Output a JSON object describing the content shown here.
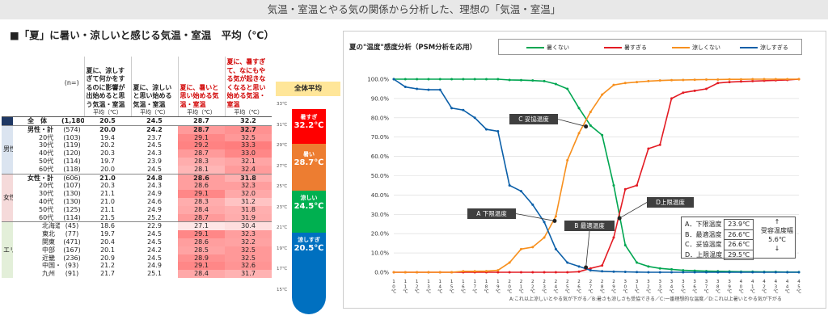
{
  "banner": "気温・室温とやる気の関係から分析した、理想の「気温・室温」",
  "section_title": "■「夏」に暑い・涼しいと感じる気温・室温　平均（℃）",
  "table": {
    "n_header": "(n=)",
    "columns": [
      "夏に、涼しすぎて何かをするのに影響が出始めると思う気温・室温",
      "夏に、涼しいと思い始める気温・室温",
      "夏に、暑いと思い始める気温・室温",
      "夏に、暑すぎて、なにもやる気が起きなくなると思い始める気温・室温"
    ],
    "avg_label": "平均（℃）",
    "all_row": {
      "label": "全　体",
      "n": "(1,180)",
      "values": [
        "20.5",
        "24.5",
        "28.7",
        "32.2"
      ]
    },
    "groups": [
      {
        "name": "男性",
        "rows": [
          {
            "label": "男性・計",
            "n": "(574)",
            "values": [
              "20.0",
              "24.2",
              "28.7",
              "32.7"
            ]
          },
          {
            "label": "20代",
            "n": "(103)",
            "values": [
              "19.4",
              "23.7",
              "29.1",
              "32.5"
            ]
          },
          {
            "label": "30代",
            "n": "(119)",
            "values": [
              "20.2",
              "24.5",
              "29.2",
              "33.3"
            ]
          },
          {
            "label": "40代",
            "n": "(120)",
            "values": [
              "20.3",
              "24.3",
              "28.7",
              "33.0"
            ]
          },
          {
            "label": "50代",
            "n": "(114)",
            "values": [
              "19.7",
              "23.9",
              "28.3",
              "32.1"
            ]
          },
          {
            "label": "60代",
            "n": "(118)",
            "values": [
              "20.0",
              "24.5",
              "28.1",
              "32.4"
            ]
          }
        ]
      },
      {
        "name": "女性",
        "rows": [
          {
            "label": "女性・計",
            "n": "(606)",
            "values": [
              "21.0",
              "24.8",
              "28.6",
              "31.8"
            ]
          },
          {
            "label": "20代",
            "n": "(107)",
            "values": [
              "20.3",
              "24.3",
              "28.6",
              "32.3"
            ]
          },
          {
            "label": "30代",
            "n": "(130)",
            "values": [
              "21.1",
              "24.9",
              "29.1",
              "32.0"
            ]
          },
          {
            "label": "40代",
            "n": "(130)",
            "values": [
              "21.0",
              "24.6",
              "28.3",
              "31.2"
            ]
          },
          {
            "label": "50代",
            "n": "(125)",
            "values": [
              "21.1",
              "24.9",
              "28.4",
              "31.8"
            ]
          },
          {
            "label": "60代",
            "n": "(114)",
            "values": [
              "21.5",
              "25.2",
              "28.7",
              "31.9"
            ]
          }
        ]
      },
      {
        "name": "エリア別",
        "rows": [
          {
            "label": "北海道",
            "n": "(45)",
            "values": [
              "18.6",
              "22.9",
              "27.1",
              "30.4"
            ]
          },
          {
            "label": "東北",
            "n": "(77)",
            "values": [
              "19.7",
              "24.5",
              "29.1",
              "32.3"
            ]
          },
          {
            "label": "関東",
            "n": "(471)",
            "values": [
              "20.4",
              "24.5",
              "28.6",
              "32.2"
            ]
          },
          {
            "label": "中部",
            "n": "(167)",
            "values": [
              "20.1",
              "24.2",
              "28.5",
              "32.5"
            ]
          },
          {
            "label": "近畿",
            "n": "(236)",
            "values": [
              "20.9",
              "24.5",
              "28.9",
              "32.5"
            ]
          },
          {
            "label": "中国・四国",
            "n": "(93)",
            "values": [
              "21.2",
              "24.9",
              "29.1",
              "32.6"
            ]
          },
          {
            "label": "九州",
            "n": "(91)",
            "values": [
              "21.7",
              "25.1",
              "28.4",
              "31.7"
            ]
          }
        ]
      }
    ]
  },
  "thermometer": {
    "header": "全体平均",
    "ticks": [
      "33℃",
      "31℃",
      "29℃",
      "27℃",
      "25℃",
      "23℃",
      "21℃",
      "19℃",
      "17℃",
      "15℃"
    ],
    "segments": [
      {
        "label": "暑すぎ",
        "value": "32.2℃",
        "color": "#ff0000"
      },
      {
        "label": "暑い",
        "value": "28.7℃",
        "color": "#ed7d31"
      },
      {
        "label": "涼しい",
        "value": "24.5℃",
        "color": "#00b050"
      },
      {
        "label": "涼しすぎ",
        "value": "20.5℃",
        "color": "#0070c0"
      }
    ]
  },
  "chart_title": "夏の\"温度\"感度分析（PSM分析を応用）",
  "chart_data": {
    "type": "line",
    "x": [
      10,
      11,
      12,
      13,
      14,
      15,
      16,
      17,
      18,
      19,
      20,
      21,
      22,
      23,
      24,
      25,
      26,
      27,
      28,
      29,
      30,
      31,
      32,
      33,
      34,
      35,
      36,
      37,
      38,
      39,
      40,
      41,
      42,
      43,
      44,
      45
    ],
    "x_tick_labels": [
      "10℃",
      "11℃",
      "12℃",
      "13℃",
      "14℃",
      "15℃",
      "16℃",
      "17℃",
      "18℃",
      "19℃",
      "20℃",
      "21℃",
      "22℃",
      "23℃",
      "24℃",
      "25℃",
      "26℃",
      "27℃",
      "28℃",
      "29℃",
      "30℃",
      "31℃",
      "32℃",
      "33℃",
      "34℃",
      "35℃",
      "36℃",
      "37℃",
      "38℃",
      "39℃",
      "40℃",
      "41℃",
      "42℃",
      "43℃",
      "44℃",
      "45℃"
    ],
    "y_tick_labels": [
      "0.0%",
      "10.0%",
      "20.0%",
      "30.0%",
      "40.0%",
      "50.0%",
      "60.0%",
      "70.0%",
      "80.0%",
      "90.0%",
      "100.0%"
    ],
    "ylim": [
      0,
      100
    ],
    "legend_position": "top",
    "series": [
      {
        "name": "暑くない",
        "color": "#00a651",
        "values": [
          100,
          100,
          100,
          100,
          100,
          100,
          100,
          100,
          100,
          100,
          99.6,
          99.5,
          99.3,
          99.0,
          97.5,
          95.0,
          85.0,
          76.0,
          71.0,
          45.0,
          14.0,
          5.0,
          3.0,
          2.0,
          1.5,
          1.0,
          0.8,
          0.6,
          0.5,
          0.4,
          0.3,
          0.3,
          0.2,
          0.2,
          0.1,
          0.1
        ]
      },
      {
        "name": "暑すぎる",
        "color": "#e31b23",
        "values": [
          0,
          0,
          0,
          0,
          0,
          0,
          0,
          0,
          0,
          0,
          0,
          0,
          0,
          0,
          0,
          0,
          0.3,
          2.0,
          3.5,
          18.0,
          43.0,
          45.0,
          64.0,
          66.0,
          90.0,
          93.0,
          94.0,
          95.0,
          98.0,
          98.5,
          98.8,
          99.0,
          99.2,
          99.4,
          99.6,
          100
        ]
      },
      {
        "name": "涼しくない",
        "color": "#f7901e",
        "values": [
          0,
          0,
          0,
          0,
          0,
          0,
          0.5,
          0.5,
          0.6,
          1.0,
          5.0,
          12.0,
          13.0,
          18.0,
          29.0,
          58.0,
          72.0,
          83.0,
          92.0,
          97.0,
          98.0,
          98.5,
          99.0,
          99.3,
          99.5,
          99.6,
          99.7,
          99.8,
          99.8,
          99.9,
          99.9,
          100,
          100,
          100,
          100,
          100
        ]
      },
      {
        "name": "涼しすぎる",
        "color": "#0b5fa8",
        "values": [
          100,
          96.0,
          95.0,
          94.5,
          94.5,
          85.0,
          84.0,
          80.0,
          74.0,
          73.0,
          45.0,
          42.0,
          35.0,
          26.0,
          12.0,
          5.0,
          3.0,
          1.0,
          0.5,
          0.3,
          0.2,
          0.1,
          0,
          0,
          0,
          0,
          0,
          0,
          0,
          0,
          0,
          0,
          0,
          0,
          0,
          0
        ]
      }
    ],
    "annotations": [
      {
        "text": "A 下限温度",
        "x": 23.9,
        "y": 26.6
      },
      {
        "text": "B 最適温度",
        "x": 26.6,
        "y": 2.5
      },
      {
        "text": "C 妥協温度",
        "x": 26.6,
        "y": 75.5
      },
      {
        "text": "D上限温度",
        "x": 29.5,
        "y": 28.0
      }
    ]
  },
  "summary": {
    "rows": [
      {
        "label": "A．下限温度",
        "value": "23.9℃"
      },
      {
        "label": "B．最適温度",
        "value": "26.6℃"
      },
      {
        "label": "C．妥協温度",
        "value": "26.6℃"
      },
      {
        "label": "D．上限温度",
        "value": "29.5℃"
      }
    ],
    "up_arrow": "↑",
    "range_label": "受容温度幅",
    "range_value": "5.6℃",
    "down_arrow": "↓"
  },
  "footnote": "A:これ以上涼しいとやる気が下がる／B:暑さも涼しさも受協できる／C:一番理想的な温度／D:これ以上暑いとやる気が下がる"
}
